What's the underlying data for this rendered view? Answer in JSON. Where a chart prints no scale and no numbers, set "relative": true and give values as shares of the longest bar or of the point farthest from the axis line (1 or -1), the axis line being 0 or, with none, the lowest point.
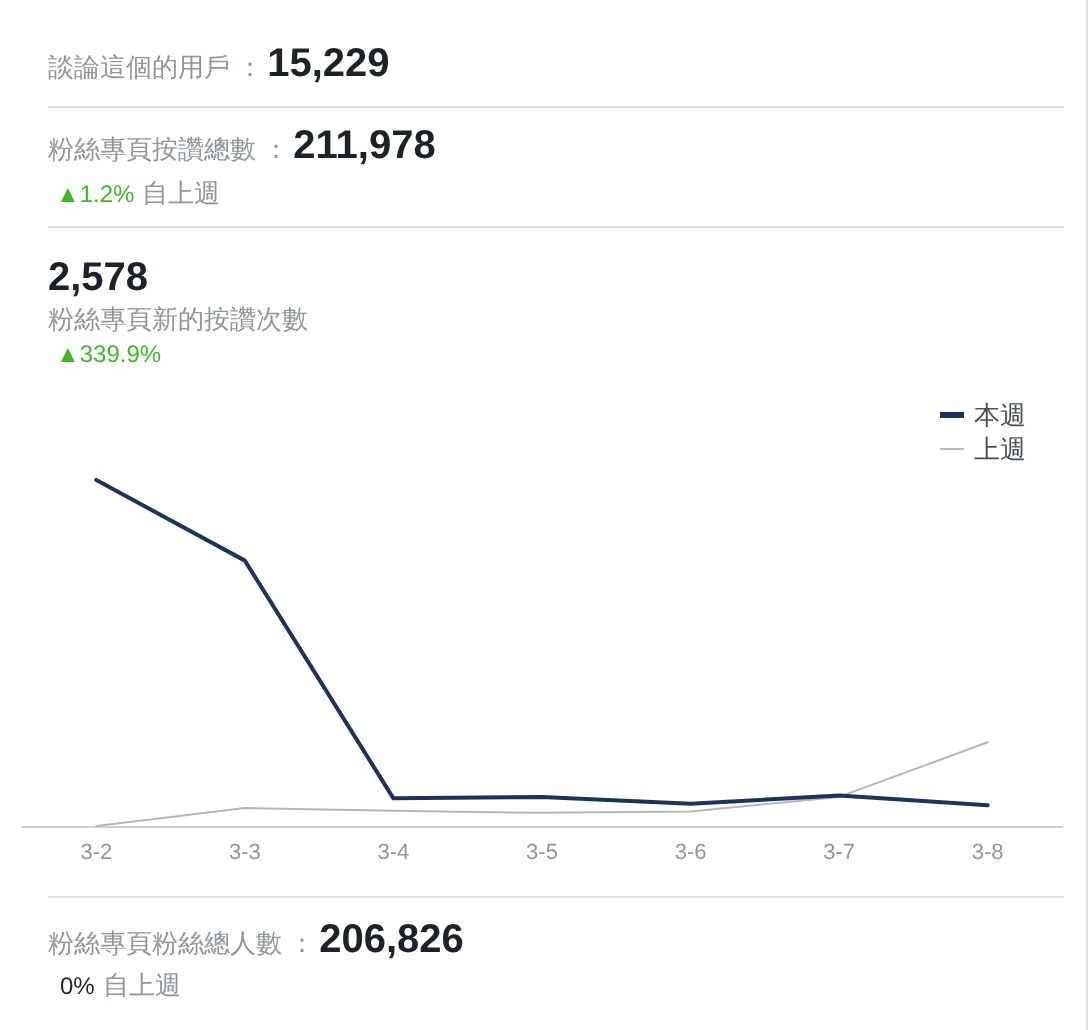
{
  "chart_data": {
    "type": "line",
    "title": "粉絲專頁新的按讚次數",
    "categories": [
      "3-2",
      "3-3",
      "3-4",
      "3-5",
      "3-6",
      "3-7",
      "3-8"
    ],
    "relative": true,
    "series": [
      {
        "name": "本週",
        "color": "#1f3259",
        "values": [
          1,
          0.767,
          0.08,
          0.084,
          0.064,
          0.088,
          0.06
        ]
      },
      {
        "name": "上週",
        "color": "#b4b7bd",
        "values": [
          0,
          0.052,
          0.044,
          0.038,
          0.042,
          0.084,
          0.242
        ]
      }
    ],
    "legend": "top right",
    "marker": "none",
    "line_style": "solid",
    "annotations": [
      "談論這個的用戶 ：",
      "15,229",
      "粉絲專頁按讚總數 ：",
      "211,978",
      "▲1.2%",
      "自上週",
      "2,578",
      "▲339.9%",
      "粉絲專頁粉絲總人數 ：",
      "206,826",
      "0%",
      "自上週"
    ]
  }
}
